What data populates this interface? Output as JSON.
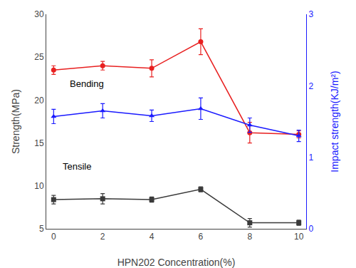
{
  "chart_data": {
    "type": "line",
    "x": [
      0,
      2,
      4,
      6,
      8,
      10
    ],
    "xlabel": "HPN202 Concentration(%)",
    "ylabel": "Strength(MPa)",
    "y2label": "Impact strength(KJ/m²)",
    "xlim": [
      -0.3,
      10.3
    ],
    "xticks": [
      0,
      2,
      4,
      6,
      8,
      10
    ],
    "ylim": [
      5,
      30
    ],
    "yticks": [
      5,
      10,
      15,
      20,
      25,
      30
    ],
    "y2lim": [
      0,
      3.0
    ],
    "y2ticks": [
      0,
      1,
      2,
      3
    ],
    "grid": false,
    "series": [
      {
        "values": [
          23.5,
          24.0,
          23.7,
          26.8,
          16.2,
          16.0
        ],
        "errors": [
          0.5,
          0.5,
          1.0,
          1.5,
          1.2,
          0.4
        ],
        "color": "#e82020",
        "marker": "circle"
      },
      {
        "values": [
          8.4,
          8.5,
          8.4,
          9.6,
          5.7,
          5.7
        ],
        "errors": [
          0.5,
          0.6,
          0.3,
          0.3,
          0.5,
          0.3
        ],
        "color": "#3a3a3a",
        "marker": "square"
      },
      {
        "values": [
          1.57,
          1.65,
          1.58,
          1.68,
          1.45,
          1.3
        ],
        "errors": [
          0.1,
          0.1,
          0.08,
          0.15,
          0.1,
          0.08
        ],
        "color": "#1a1aff",
        "marker": "triangle",
        "axis": "y2"
      }
    ],
    "annotations": [
      {
        "text": "Bending",
        "x": 0.6,
        "y": 21.1
      },
      {
        "text": "Tensile",
        "x": 0.3,
        "y": 11.5
      }
    ]
  }
}
